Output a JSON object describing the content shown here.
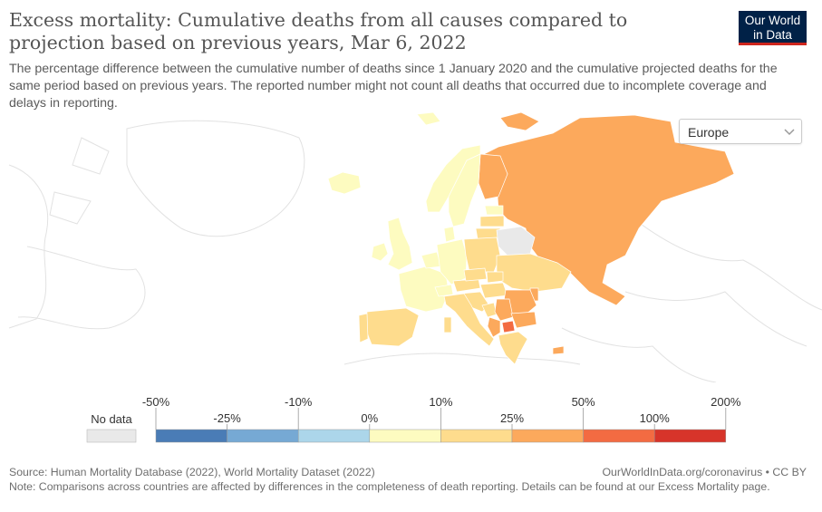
{
  "header": {
    "title": "Excess mortality: Cumulative deaths from all causes compared to projection based on previous years, Mar 6, 2022",
    "subtitle": "The percentage difference between the cumulative number of deaths since 1 January 2020 and the cumulative projected deaths for the same period based on previous years. The reported number might not count all deaths that occurred due to incomplete coverage and delays in reporting.",
    "logo_line1": "Our World",
    "logo_line2": "in Data"
  },
  "region_select": {
    "value": "Europe",
    "icon": "chevron-down-icon"
  },
  "legend": {
    "no_data_label": "No data",
    "no_data_color": "#e9e9e9",
    "top_labels": [
      "-50%",
      "-10%",
      "10%",
      "50%",
      "200%"
    ],
    "bottom_labels": [
      "-25%",
      "0%",
      "25%",
      "100%"
    ],
    "bins": [
      {
        "range": "-50% to -25%",
        "color": "#4a7cb6"
      },
      {
        "range": "-25% to -10%",
        "color": "#76a9d4"
      },
      {
        "range": "-10% to 0%",
        "color": "#acd6ea"
      },
      {
        "range": "0% to 10%",
        "color": "#fdfbc0"
      },
      {
        "range": "10% to 25%",
        "color": "#fedc8d"
      },
      {
        "range": "25% to 50%",
        "color": "#fca95c"
      },
      {
        "range": "50% to 100%",
        "color": "#f36b42"
      },
      {
        "range": "100% to 200%",
        "color": "#d7342a"
      }
    ]
  },
  "footer": {
    "source": "Source: Human Mortality Database (2022), World Mortality Dataset (2022)",
    "url": "OurWorldInData.org/coronavirus • CC BY",
    "note": "Note: Comparisons across countries are affected by differences in the completeness of death reporting. Details can be found at our Excess Mortality page."
  }
}
